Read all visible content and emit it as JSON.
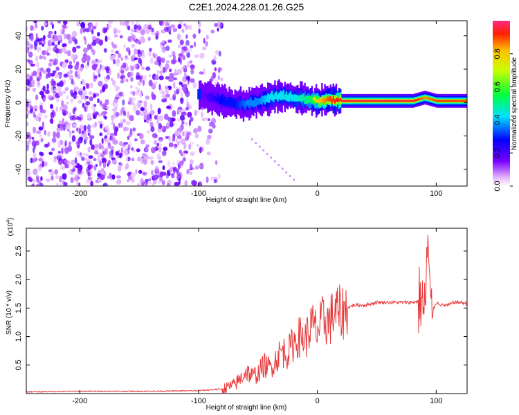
{
  "title": "C2E1.2024.228.01.26.G25",
  "chart_data": [
    {
      "type": "heatmap",
      "xlabel": "Height of straight line (km)",
      "ylabel": "Frequency (Hz)",
      "xlim": [
        -245,
        126
      ],
      "ylim": [
        -50,
        49
      ],
      "xticks": [
        -200,
        -100,
        0,
        100
      ],
      "yticks": [
        -40,
        -20,
        0,
        20,
        40
      ],
      "colorbar": {
        "label": "Normalized spectral amplitude",
        "range": [
          0,
          1
        ],
        "ticks": [
          "0.0",
          "0.2",
          "0.4",
          "0.6",
          "0.8"
        ]
      },
      "ridge": {
        "x": [
          -100,
          -90,
          -80,
          -70,
          -60,
          -50,
          -40,
          -30,
          -20,
          -10,
          0,
          10,
          20,
          40,
          60,
          80,
          90,
          100,
          126
        ],
        "y": [
          5,
          3,
          1,
          -1,
          -1,
          1,
          3,
          4,
          3,
          2,
          1,
          2,
          1,
          1,
          1,
          1,
          3,
          1,
          1
        ],
        "amplitude": [
          0.2,
          0.3,
          0.4,
          0.4,
          0.5,
          0.5,
          0.6,
          0.6,
          0.6,
          0.7,
          0.8,
          0.9,
          0.95,
          0.95,
          0.95,
          0.95,
          0.85,
          0.9,
          0.9
        ]
      },
      "noise_region_x": [
        -245,
        -80
      ]
    },
    {
      "type": "line",
      "xlabel": "Height of straight line (km)",
      "ylabel": "SNR (10 * v/v)",
      "scale_label": "(x10",
      "scale_exponent": "4",
      "xlim": [
        -245,
        126
      ],
      "ylim": [
        0,
        2.9
      ],
      "xticks": [
        -200,
        -100,
        0,
        100
      ],
      "yticks": [
        0.5,
        1.0,
        1.5,
        2.0,
        2.5
      ],
      "ytick_labels": [
        "0.5",
        "1.0",
        "1.5",
        "2.0",
        "2.5"
      ],
      "color": "#e8393a",
      "series": [
        {
          "x": [
            -245,
            -200,
            -150,
            -100,
            -80,
            -70,
            -65,
            -60,
            -55,
            -50,
            -45,
            -40,
            -35,
            -30,
            -25,
            -20,
            -15,
            -10,
            -5,
            0,
            5,
            10,
            15,
            20,
            25,
            30,
            40,
            50,
            60,
            70,
            80,
            85,
            88,
            90,
            92,
            93,
            95,
            98,
            100,
            105,
            110,
            115,
            120,
            126
          ],
          "y": [
            0.03,
            0.04,
            0.04,
            0.05,
            0.08,
            0.15,
            0.25,
            0.4,
            0.3,
            0.35,
            0.5,
            0.45,
            0.6,
            0.75,
            0.7,
            0.9,
            1.0,
            0.95,
            1.2,
            1.1,
            1.3,
            1.25,
            1.45,
            1.4,
            1.5,
            1.55,
            1.55,
            1.6,
            1.6,
            1.6,
            1.6,
            1.62,
            1.7,
            1.3,
            2.2,
            2.7,
            1.4,
            1.5,
            1.6,
            1.55,
            1.55,
            1.6,
            1.6,
            1.58
          ]
        }
      ]
    }
  ]
}
